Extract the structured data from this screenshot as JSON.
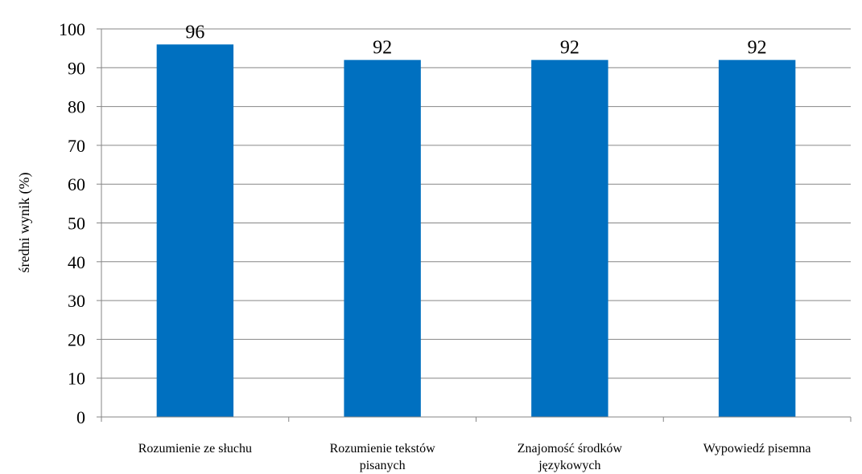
{
  "chart_data": {
    "type": "bar",
    "categories": [
      [
        "Rozumienie ze słuchu"
      ],
      [
        "Rozumienie tekstów",
        "pisanych"
      ],
      [
        "Znajomość środków",
        "językowych"
      ],
      [
        "Wypowiedź pisemna"
      ]
    ],
    "values": [
      96,
      92,
      92,
      92
    ],
    "data_labels": [
      "96",
      "92",
      "92",
      "92"
    ],
    "title": "",
    "xlabel": "",
    "ylabel": "średni wynik (%)",
    "ylim": [
      0,
      100
    ],
    "yticks": [
      0,
      10,
      20,
      30,
      40,
      50,
      60,
      70,
      80,
      90,
      100
    ],
    "grid": true,
    "legend": "none",
    "bar_color": "#0070C0",
    "grid_color": "#868686"
  }
}
